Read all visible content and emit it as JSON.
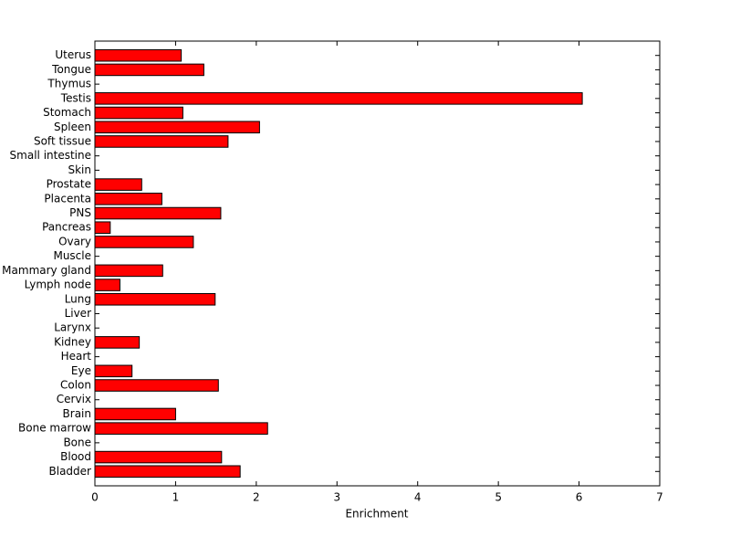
{
  "chart_data": {
    "type": "barh",
    "x_label": "Enrichment",
    "categories": [
      "Uterus",
      "Tongue",
      "Thymus",
      "Testis",
      "Stomach",
      "Spleen",
      "Soft tissue",
      "Small intestine",
      "Skin",
      "Prostate",
      "Placenta",
      "PNS",
      "Pancreas",
      "Ovary",
      "Muscle",
      "Mammary gland",
      "Lymph node",
      "Lung",
      "Liver",
      "Larynx",
      "Kidney",
      "Heart",
      "Eye",
      "Colon",
      "Cervix",
      "Brain",
      "Bone marrow",
      "Bone",
      "Blood",
      "Bladder"
    ],
    "values": [
      1.07,
      1.35,
      0,
      6.04,
      1.09,
      2.04,
      1.65,
      0,
      0,
      0.58,
      0.83,
      1.56,
      0.19,
      1.22,
      0,
      0.84,
      0.31,
      1.49,
      0,
      0,
      0.55,
      0,
      0.46,
      1.53,
      0,
      1.0,
      2.14,
      0,
      1.57,
      1.8
    ],
    "color": "#ff0000",
    "xlim": [
      0,
      7
    ],
    "xticks": [
      0,
      1,
      2,
      3,
      4,
      5,
      6,
      7
    ]
  }
}
